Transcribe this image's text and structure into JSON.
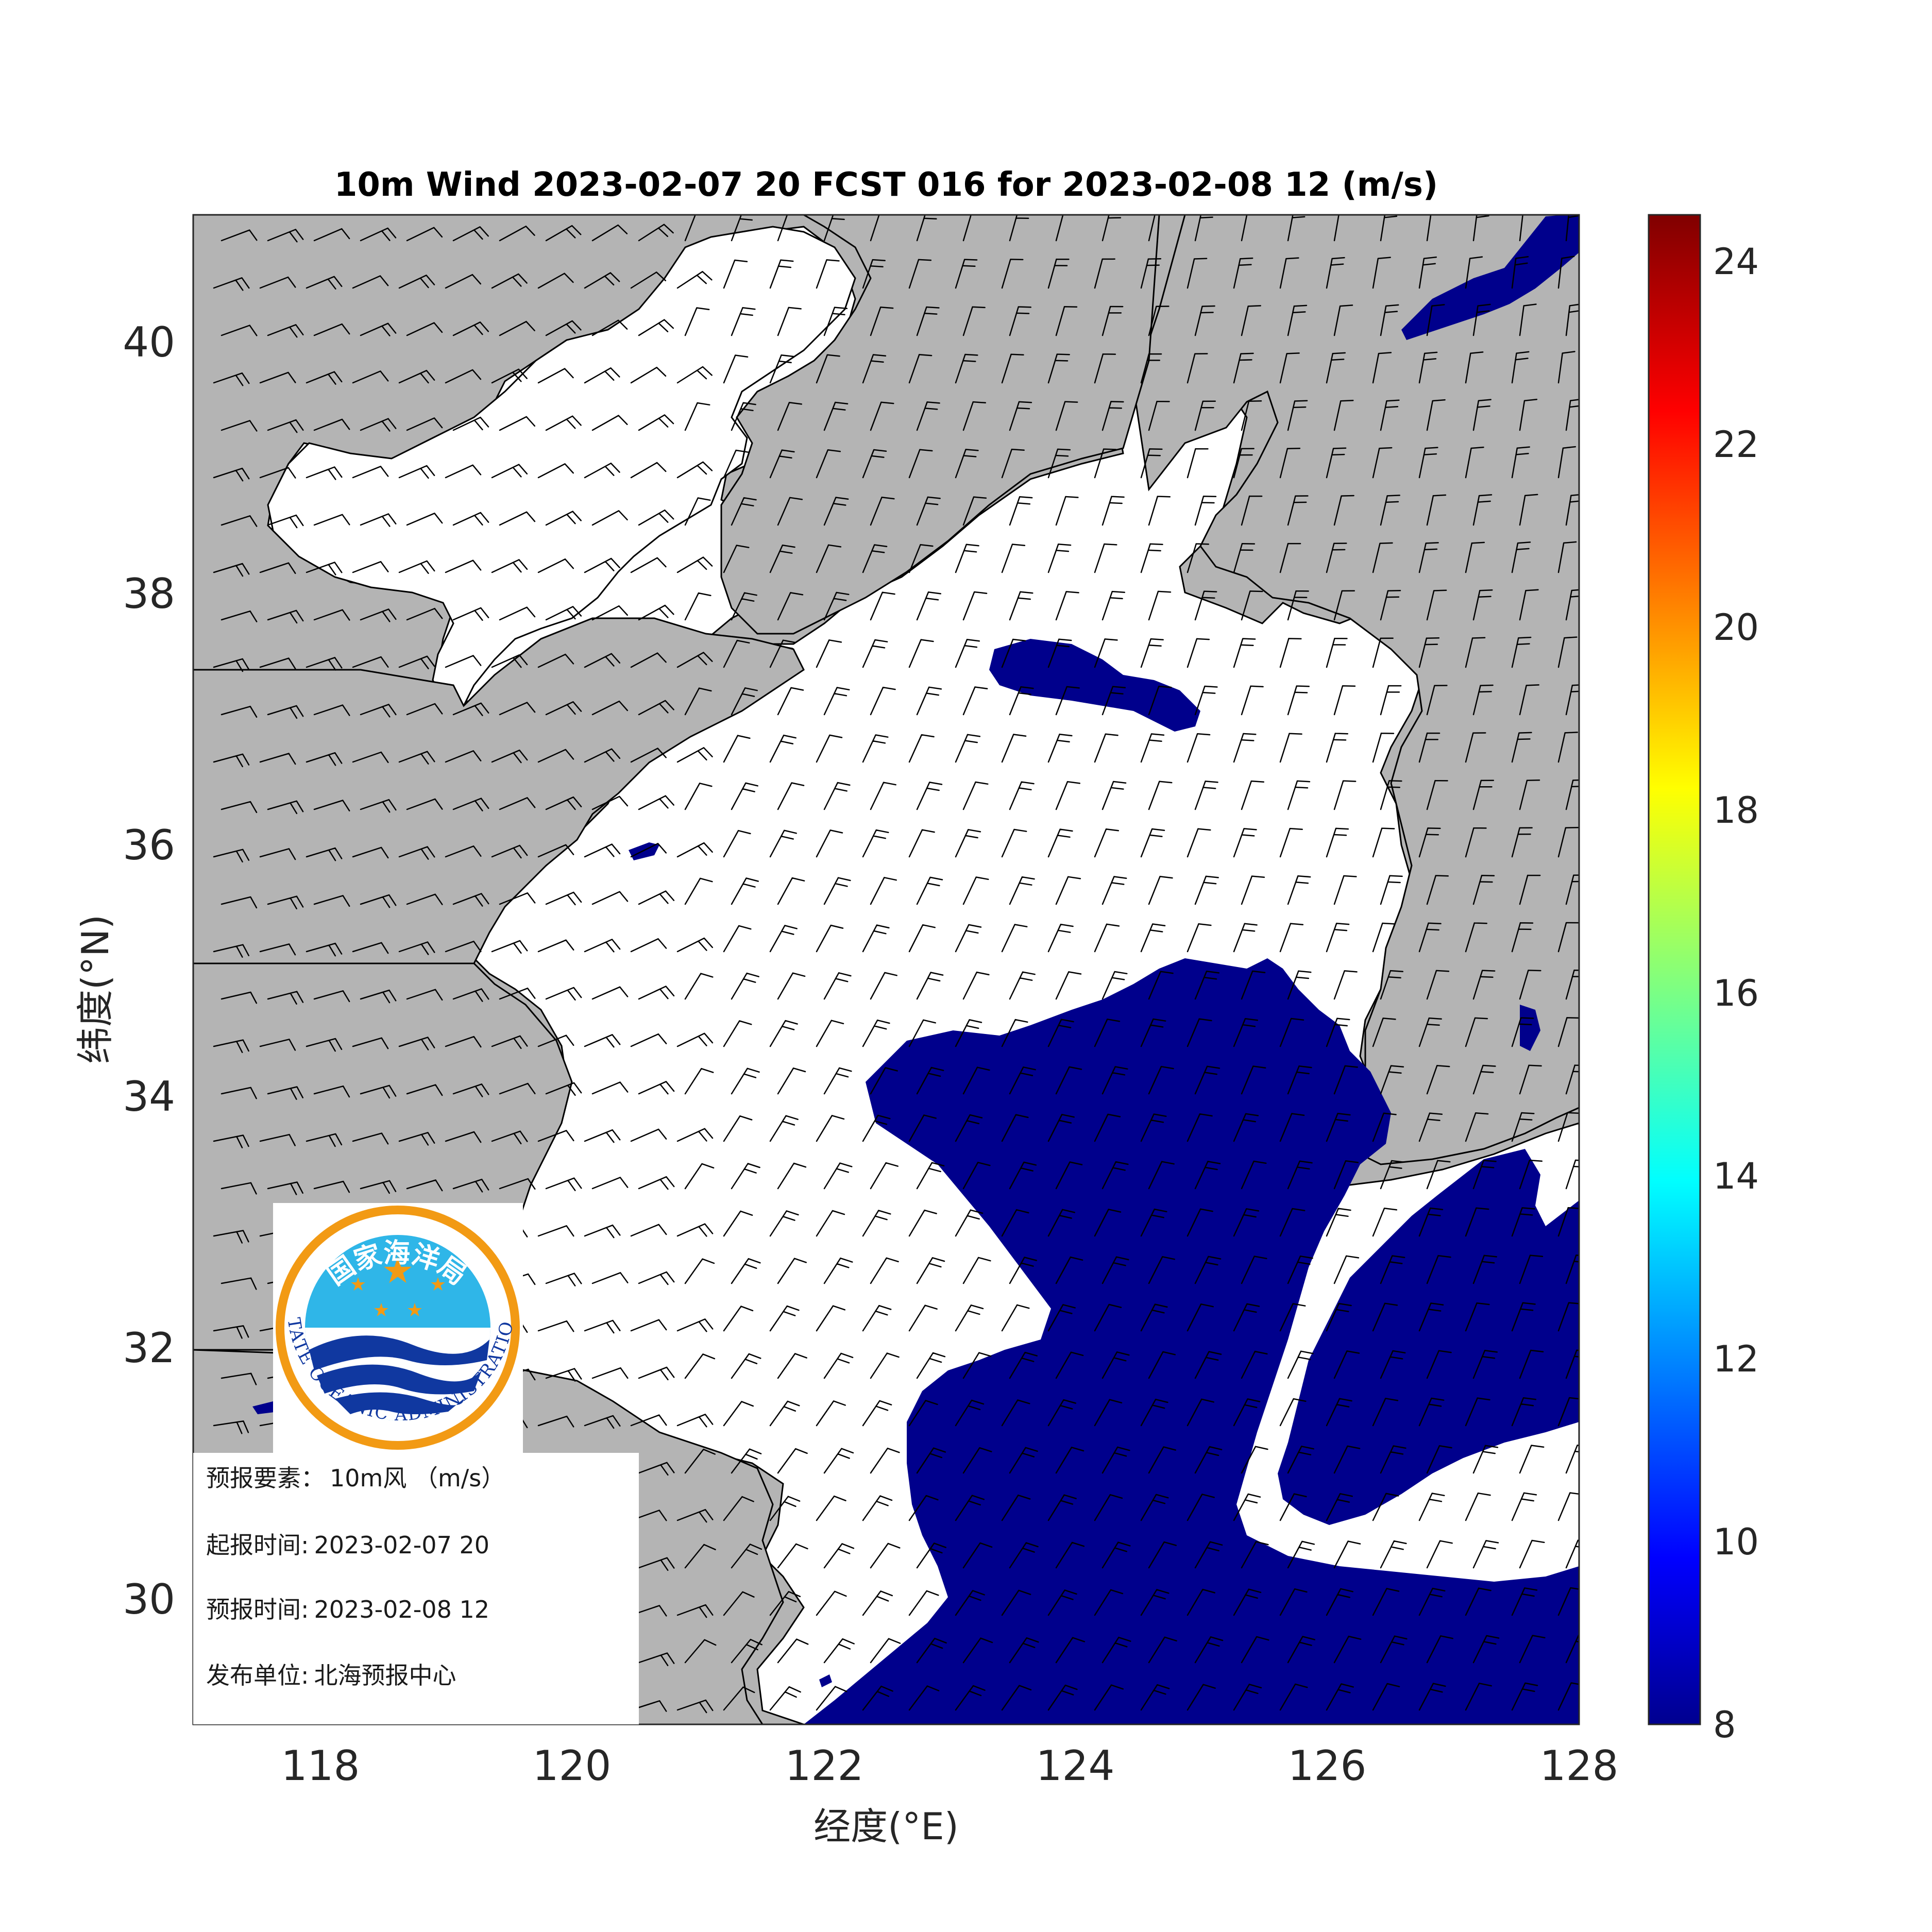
{
  "title": "10m Wind 2023-02-07 20 FCST 016 for 2023-02-08 12 (m/s)",
  "map": {
    "lon_range": [
      117,
      128
    ],
    "lat_range": [
      29,
      41
    ],
    "x_ticks": [
      "118",
      "120",
      "122",
      "124",
      "126",
      "128"
    ],
    "y_ticks": [
      "30",
      "32",
      "34",
      "36",
      "38",
      "40"
    ],
    "xlabel": "经度(°E)",
    "ylabel": "纬度(°N)",
    "land_color": "#b4b4b4",
    "sea_color": "#ffffff",
    "high_wind_color": "#00008c",
    "wind_barbs": true
  },
  "colorbar": {
    "range": [
      8,
      24.5
    ],
    "ticks": [
      "8",
      "10",
      "12",
      "14",
      "16",
      "18",
      "20",
      "22",
      "24"
    ],
    "colormap": "jet"
  },
  "info_box": {
    "element_label": "预报要素：",
    "element_value": "10m风 （m/s）",
    "issue_label": "起报时间:",
    "issue_value": "2023-02-07 20",
    "valid_label": "预报时间:",
    "valid_value": "2023-02-08 12",
    "publisher_label": "发布单位:",
    "publisher_value": "北海预报中心"
  },
  "logo": {
    "name_cn": "国家海洋局",
    "name_en": "STATE OCEANIC ADMINISTRATION"
  }
}
